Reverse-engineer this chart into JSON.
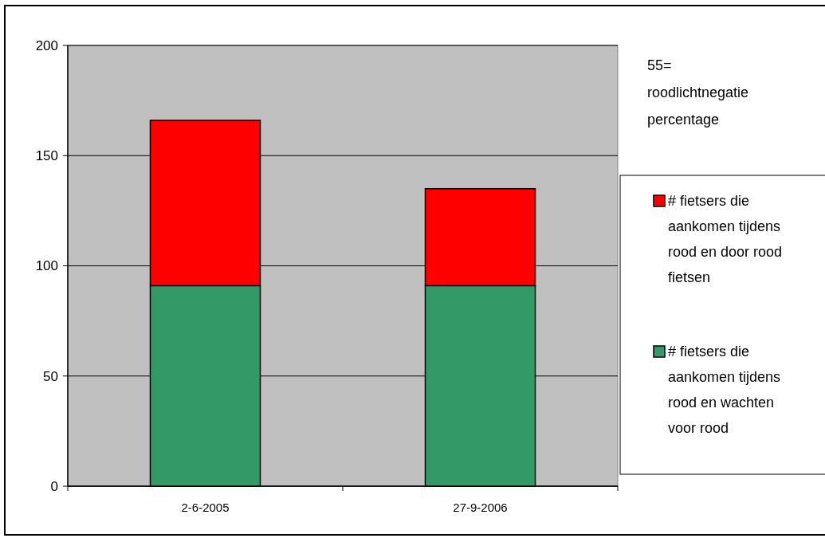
{
  "chart_data": {
    "type": "bar",
    "stacked": true,
    "categories": [
      "2-6-2005",
      "27-9-2006"
    ],
    "series": [
      {
        "name": "# fietsers die aankomen tijdens rood en wachten voor rood",
        "color": "#339966",
        "values": [
          91,
          91
        ]
      },
      {
        "name": "# fietsers die aankomen tijdens rood en door rood fietsen",
        "color": "#ff0000",
        "values": [
          75,
          44
        ]
      }
    ],
    "ylim": [
      0,
      200
    ],
    "yticks": [
      0,
      50,
      100,
      150,
      200
    ],
    "grid": "y",
    "legend": "right",
    "annotations": [
      "55= roodlichtnegatie percentage"
    ]
  }
}
